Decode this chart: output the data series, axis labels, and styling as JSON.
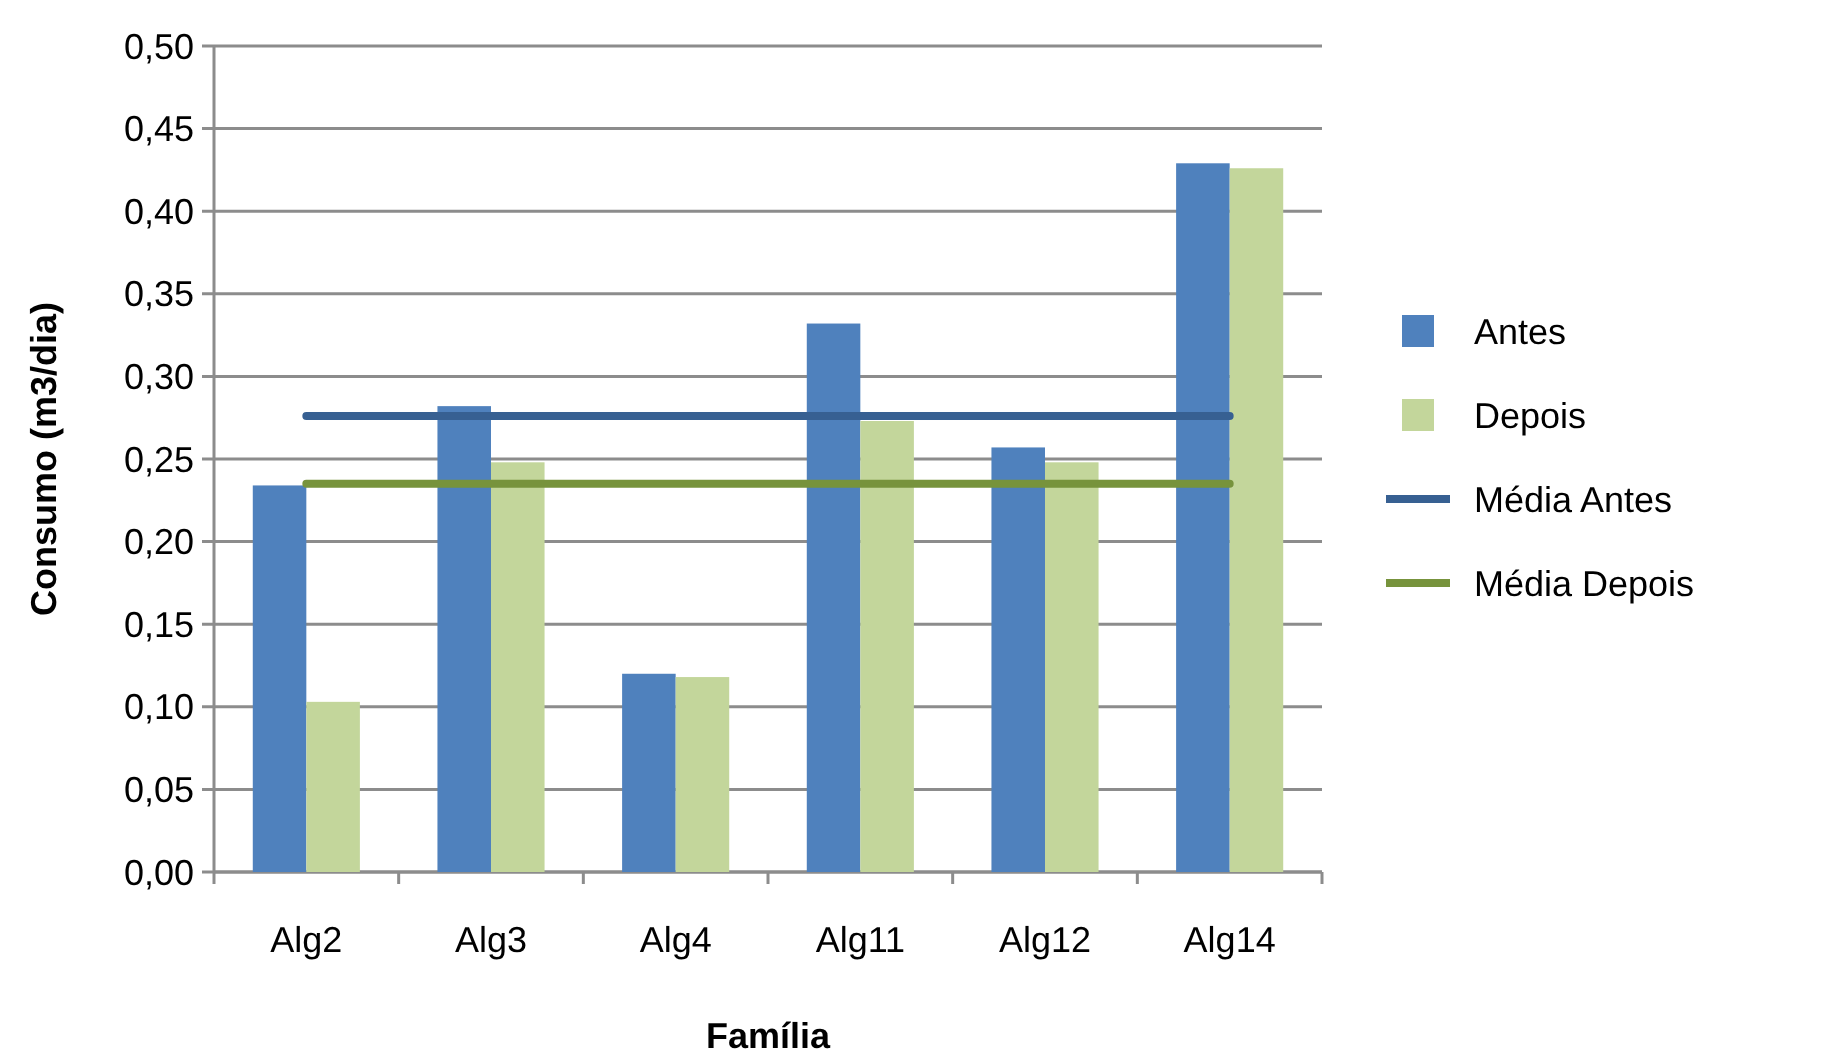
{
  "chart_data": {
    "type": "bar",
    "xlabel": "Família",
    "ylabel": "Consumo (m3/dia)",
    "categories": [
      "Alg2",
      "Alg3",
      "Alg4",
      "Alg11",
      "Alg12",
      "Alg14"
    ],
    "series": [
      {
        "name": "Antes",
        "color": "#4f81bd",
        "values": [
          0.234,
          0.282,
          0.12,
          0.332,
          0.257,
          0.429
        ]
      },
      {
        "name": "Depois",
        "color": "#c3d69b",
        "values": [
          0.103,
          0.248,
          0.118,
          0.273,
          0.248,
          0.426
        ]
      },
      {
        "name": "Média Antes",
        "type": "line",
        "color": "#376092",
        "values": [
          0.276,
          0.276,
          0.276,
          0.276,
          0.276,
          0.276
        ]
      },
      {
        "name": "Média Depois",
        "type": "line",
        "color": "#77933c",
        "values": [
          0.235,
          0.235,
          0.235,
          0.235,
          0.235,
          0.235
        ]
      }
    ],
    "ylim": [
      0,
      0.5
    ],
    "yticks": [
      {
        "value": 0,
        "label": "0,00"
      },
      {
        "value": 0.05,
        "label": "0,05"
      },
      {
        "value": 0.1,
        "label": "0,10"
      },
      {
        "value": 0.15,
        "label": "0,15"
      },
      {
        "value": 0.2,
        "label": "0,20"
      },
      {
        "value": 0.25,
        "label": "0,25"
      },
      {
        "value": 0.3,
        "label": "0,30"
      },
      {
        "value": 0.35,
        "label": "0,35"
      },
      {
        "value": 0.4,
        "label": "0,40"
      },
      {
        "value": 0.45,
        "label": "0,45"
      },
      {
        "value": 0.5,
        "label": "0,50"
      }
    ],
    "grid": "y",
    "legend": "right",
    "marker": "none",
    "line_style": "solid"
  }
}
